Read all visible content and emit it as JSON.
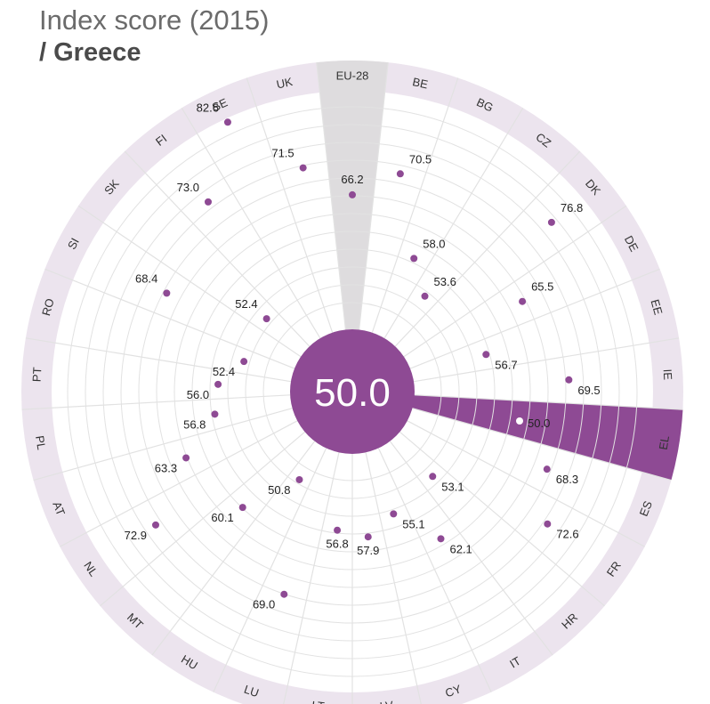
{
  "header": {
    "title": "Index score (2015)",
    "subtitle": "/ Greece"
  },
  "colors": {
    "accent": "#8e4a94",
    "ring": "#ece4ee",
    "highlight_band": "#dedcde",
    "grid": "#e2e2e2",
    "selected_label": "#ffffff"
  },
  "chart_data": {
    "type": "radial-scatter",
    "title": "Index score (2015)",
    "subtitle": "/ Greece",
    "center_value": "50.0",
    "selected": "EL",
    "reference": "EU-28",
    "categories": [
      "EU-28",
      "BE",
      "BG",
      "CZ",
      "DK",
      "DE",
      "EE",
      "IE",
      "EL",
      "ES",
      "FR",
      "HR",
      "IT",
      "CY",
      "LV",
      "LT",
      "LU",
      "HU",
      "MT",
      "NL",
      "AT",
      "PL",
      "PT",
      "RO",
      "SI",
      "SK",
      "FI",
      "SE",
      "UK"
    ],
    "values": [
      66.2,
      70.5,
      58.0,
      53.6,
      76.8,
      65.5,
      56.7,
      69.5,
      50.0,
      68.3,
      72.6,
      53.1,
      62.1,
      55.1,
      57.9,
      56.8,
      69.0,
      50.8,
      60.1,
      72.9,
      63.3,
      56.8,
      56.0,
      52.4,
      68.4,
      52.4,
      73.0,
      82.6,
      71.5
    ],
    "labels": [
      "66.2",
      "70.5",
      "58.0",
      "53.6",
      "76.8",
      "65.5",
      "56.7",
      "69.5",
      "50.0",
      "68.3",
      "72.6",
      "53.1",
      "62.1",
      "55.1",
      "57.9",
      "56.8",
      "69.0",
      "50.8",
      "60.1",
      "72.9",
      "63.3",
      "56.8",
      "56.0",
      "52.4",
      "68.4",
      "52.4",
      "73.0",
      "82.6",
      "71.5"
    ]
  }
}
